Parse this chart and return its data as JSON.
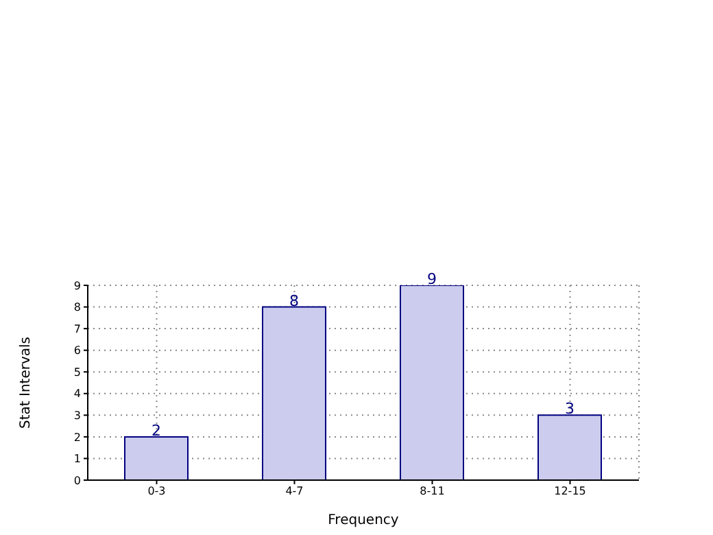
{
  "chart_data": {
    "type": "bar",
    "xlabel": "Frequency",
    "ylabel": "Stat Intervals",
    "categories": [
      "0-3",
      "4-7",
      "8-11",
      "12-15"
    ],
    "values": [
      2,
      8,
      9,
      3
    ],
    "color": "#ccccee",
    "ylim": [
      0,
      9
    ],
    "yticks": [
      0,
      1,
      2,
      3,
      4,
      5,
      6,
      7,
      8,
      9
    ],
    "grid": true,
    "data_labels": true
  }
}
